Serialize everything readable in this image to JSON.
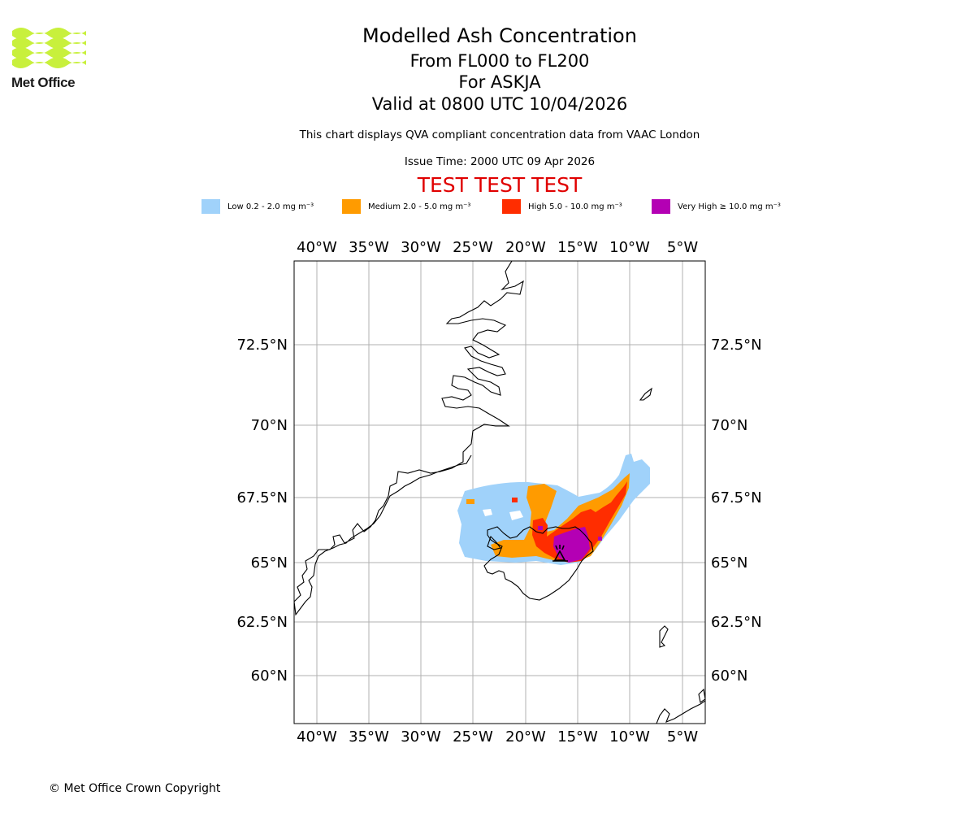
{
  "header": {
    "logo_text": "Met Office",
    "title": "Modelled Ash Concentration",
    "subtitle_levels": "From FL000 to FL200",
    "subtitle_volcano": "For ASKJA",
    "subtitle_valid": "Valid at 0800 UTC 10/04/2026",
    "description": "This chart displays QVA compliant concentration data from VAAC London",
    "issue_time": "Issue Time: 2000 UTC 09 Apr 2026",
    "test_banner": "TEST TEST TEST"
  },
  "legend": [
    {
      "label": "Low 0.2 - 2.0 mg m⁻³",
      "color": "#a0d2fa"
    },
    {
      "label": "Medium 2.0 - 5.0 mg m⁻³",
      "color": "#ff9b00"
    },
    {
      "label": "High 5.0 - 10.0 mg m⁻³",
      "color": "#ff2d00"
    },
    {
      "label": "Very High ≥ 10.0 mg m⁻³",
      "color": "#b400b4"
    }
  ],
  "map": {
    "lon_ticks": [
      "40°W",
      "35°W",
      "30°W",
      "25°W",
      "20°W",
      "15°W",
      "10°W",
      "5°W"
    ],
    "lat_ticks": [
      "72.5°N",
      "70°N",
      "67.5°N",
      "65°N",
      "62.5°N",
      "60°N"
    ],
    "volcano_marker": "volcano-triangle-icon",
    "gridlines": true
  },
  "footer": {
    "copyright": "© Met Office Crown Copyright"
  }
}
